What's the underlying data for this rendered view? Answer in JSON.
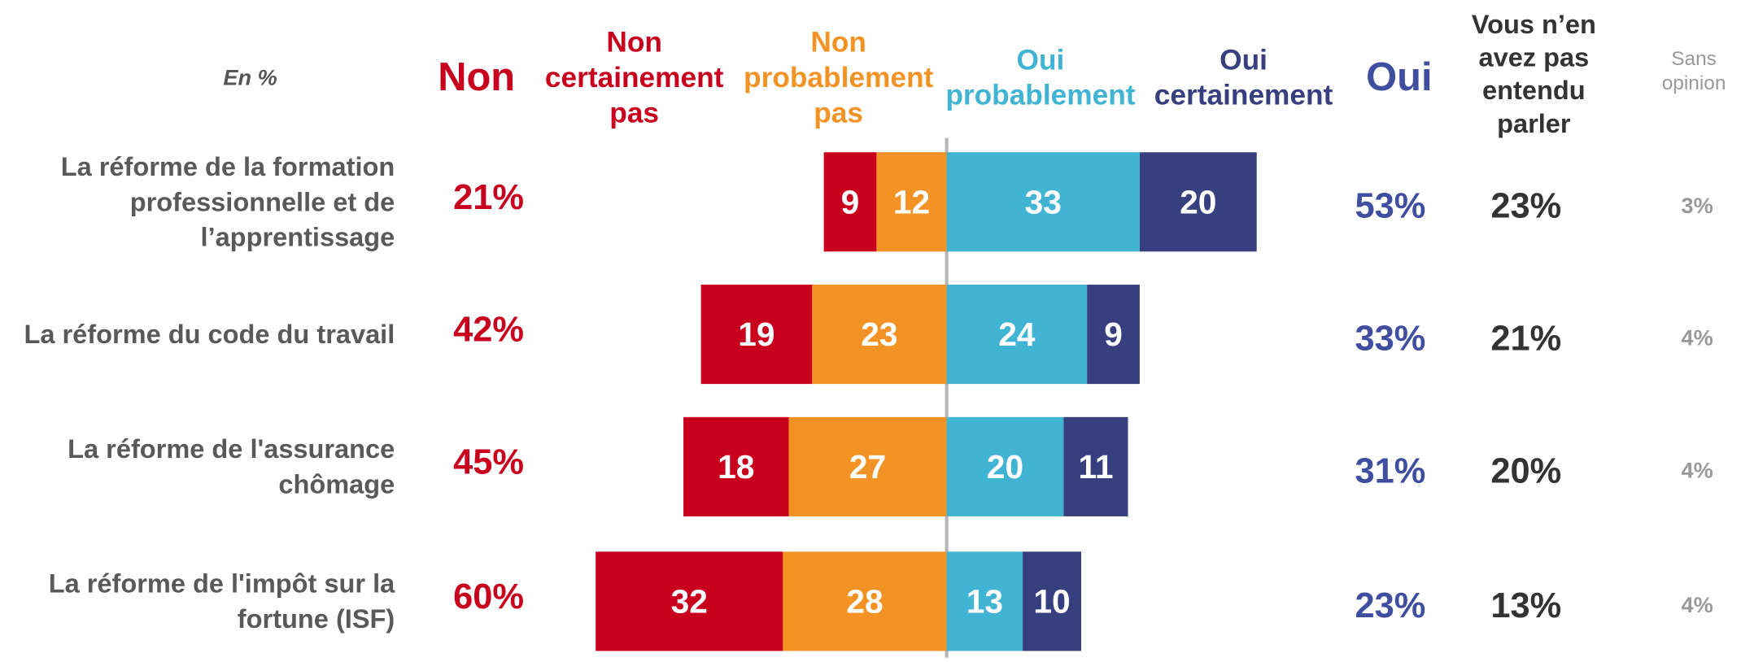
{
  "chart_data": {
    "type": "diverging_bar",
    "note": "En %",
    "categories": [
      "La réforme de la formation professionnelle et de l’apprentissage",
      "La réforme du code du travail",
      "La réforme de l'assurance chômage",
      "La réforme de l'impôt sur la fortune (ISF)"
    ],
    "series": [
      {
        "name": "Non certainement pas",
        "color": "#c8001e",
        "values": [
          9,
          19,
          18,
          32
        ]
      },
      {
        "name": "Non probablement pas",
        "color": "#f39325",
        "values": [
          12,
          23,
          27,
          28
        ]
      },
      {
        "name": "Oui probablement",
        "color": "#41b3d3",
        "values": [
          33,
          24,
          20,
          13
        ]
      },
      {
        "name": "Oui certainement",
        "color": "#373f7f",
        "values": [
          20,
          9,
          11,
          10
        ]
      }
    ],
    "non_total": {
      "name": "Non",
      "color": "#c8001e",
      "values": [
        21,
        42,
        45,
        60
      ],
      "value_labels": [
        "21%",
        "42%",
        "45%",
        "60%"
      ]
    },
    "oui_total": {
      "name": "Oui",
      "color": "#3f4e9f",
      "values": [
        53,
        33,
        31,
        23
      ],
      "value_labels": [
        "53%",
        "33%",
        "31%",
        "23%"
      ]
    },
    "not_heard": {
      "name": "Vous n’en avez pas entendu parler",
      "color": "#333333",
      "values": [
        23,
        21,
        20,
        13
      ],
      "value_labels": [
        "23%",
        "21%",
        "20%",
        "13%"
      ]
    },
    "no_opinion": {
      "name": "Sans opinion",
      "color": "#999999",
      "values": [
        3,
        4,
        4,
        4
      ],
      "value_labels": [
        "3%",
        "4%",
        "4%",
        "4%"
      ]
    }
  }
}
